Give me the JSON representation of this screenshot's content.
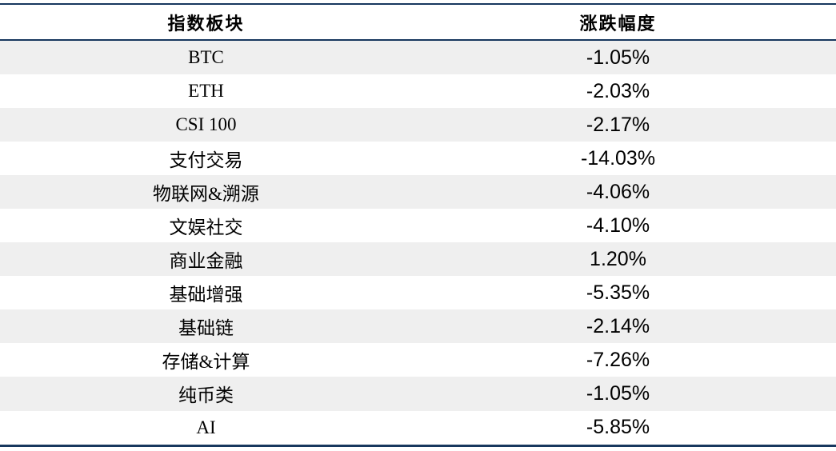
{
  "colors": {
    "border": "#17375e",
    "stripe": "#efefef",
    "text": "#000000",
    "background": "#ffffff"
  },
  "table": {
    "headers": [
      "指数板块",
      "涨跌幅度"
    ],
    "rows": [
      {
        "sector": "BTC",
        "change": "-1.05%"
      },
      {
        "sector": "ETH",
        "change": "-2.03%"
      },
      {
        "sector": "CSI 100",
        "change": "-2.17%"
      },
      {
        "sector": "支付交易",
        "change": "-14.03%"
      },
      {
        "sector": "物联网&溯源",
        "change": "-4.06%"
      },
      {
        "sector": "文娱社交",
        "change": "-4.10%"
      },
      {
        "sector": "商业金融",
        "change": "1.20%"
      },
      {
        "sector": "基础增强",
        "change": "-5.35%"
      },
      {
        "sector": "基础链",
        "change": "-2.14%"
      },
      {
        "sector": "存储&计算",
        "change": "-7.26%"
      },
      {
        "sector": "纯币类",
        "change": "-1.05%"
      },
      {
        "sector": "AI",
        "change": "-5.85%"
      }
    ]
  },
  "chart_data": {
    "type": "table",
    "columns": [
      "指数板块",
      "涨跌幅度"
    ],
    "categories": [
      "BTC",
      "ETH",
      "CSI 100",
      "支付交易",
      "物联网&溯源",
      "文娱社交",
      "商业金融",
      "基础增强",
      "基础链",
      "存储&计算",
      "纯币类",
      "AI"
    ],
    "values_percent": [
      -1.05,
      -2.03,
      -2.17,
      -14.03,
      -4.06,
      -4.1,
      1.2,
      -5.35,
      -2.14,
      -7.26,
      -1.05,
      -5.85
    ],
    "title": "",
    "layout": "two-column centered table, alternating gray/white row stripes, navy horizontal rules top/header/bottom"
  }
}
